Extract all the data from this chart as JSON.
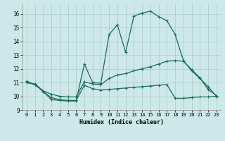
{
  "xlabel": "Humidex (Indice chaleur)",
  "bg_color": "#cde8e8",
  "grid_color": "#b0d0cc",
  "line_color": "#1a6b5a",
  "xlim": [
    -0.5,
    23.5
  ],
  "ylim": [
    9,
    16.7
  ],
  "xticks": [
    0,
    1,
    2,
    3,
    4,
    5,
    6,
    7,
    8,
    9,
    10,
    11,
    12,
    13,
    14,
    15,
    16,
    17,
    18,
    19,
    20,
    21,
    22,
    23
  ],
  "yticks": [
    9,
    10,
    11,
    12,
    13,
    14,
    15,
    16
  ],
  "line1_x": [
    0,
    1,
    2,
    3,
    4,
    5,
    6,
    7,
    8,
    9,
    10,
    11,
    12,
    13,
    14,
    15,
    16,
    17,
    18,
    19,
    20,
    21,
    22,
    23
  ],
  "line1_y": [
    11.1,
    10.85,
    10.35,
    9.75,
    9.7,
    9.65,
    9.65,
    12.35,
    11.0,
    10.95,
    14.5,
    15.2,
    13.2,
    15.85,
    16.05,
    16.2,
    15.8,
    15.5,
    14.5,
    12.6,
    11.85,
    11.3,
    10.7,
    10.0
  ],
  "line2_x": [
    0,
    1,
    2,
    3,
    4,
    5,
    6,
    7,
    8,
    9,
    10,
    11,
    12,
    13,
    14,
    15,
    16,
    17,
    18,
    19,
    20,
    21,
    22,
    23
  ],
  "line2_y": [
    11.0,
    10.9,
    10.4,
    10.15,
    10.0,
    9.95,
    9.95,
    11.05,
    10.9,
    10.85,
    11.3,
    11.55,
    11.65,
    11.85,
    12.0,
    12.15,
    12.35,
    12.55,
    12.6,
    12.55,
    11.95,
    11.35,
    10.5,
    10.05
  ],
  "line3_x": [
    0,
    1,
    2,
    3,
    4,
    5,
    6,
    7,
    8,
    9,
    10,
    11,
    12,
    13,
    14,
    15,
    16,
    17,
    18,
    19,
    20,
    21,
    22,
    23
  ],
  "line3_y": [
    11.0,
    10.85,
    10.35,
    9.9,
    9.75,
    9.7,
    9.7,
    10.8,
    10.55,
    10.45,
    10.5,
    10.55,
    10.6,
    10.65,
    10.7,
    10.75,
    10.8,
    10.85,
    9.85,
    9.85,
    9.9,
    9.95,
    9.95,
    10.0
  ],
  "xlabel_fontsize": 6,
  "tick_fontsize": 5,
  "lw": 0.9,
  "marker_size": 3.0
}
